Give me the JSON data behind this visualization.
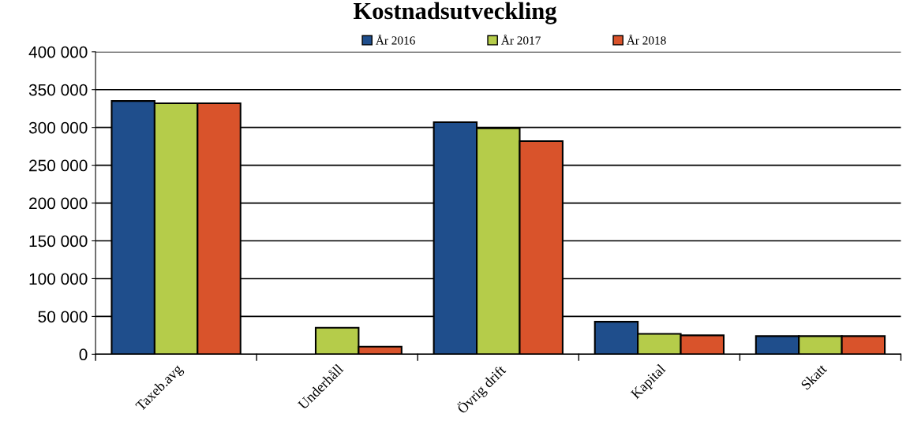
{
  "chart_data": {
    "type": "bar",
    "title": "Kostnadsutveckling",
    "categories": [
      "Taxeb.avg",
      "Underhåll",
      "Övrig drift",
      "Kapital",
      "Skatt"
    ],
    "series": [
      {
        "name": "År 2016",
        "color": "#1f4e8c",
        "values": [
          335000,
          0,
          307000,
          43000,
          24000
        ]
      },
      {
        "name": "År 2017",
        "color": "#b5cc4a",
        "values": [
          332000,
          35000,
          299000,
          27000,
          24000
        ]
      },
      {
        "name": "År 2018",
        "color": "#d9532b",
        "values": [
          332000,
          10000,
          282000,
          25000,
          24000
        ]
      }
    ],
    "ylim": [
      0,
      400000
    ],
    "yticks": [
      {
        "value": 0,
        "label": "0"
      },
      {
        "value": 50000,
        "label": "50 000"
      },
      {
        "value": 100000,
        "label": "100 000"
      },
      {
        "value": 150000,
        "label": "150 000"
      },
      {
        "value": 200000,
        "label": "200 000"
      },
      {
        "value": 250000,
        "label": "250 000"
      },
      {
        "value": 300000,
        "label": "300 000"
      },
      {
        "value": 350000,
        "label": "350 000"
      },
      {
        "value": 400000,
        "label": "400 000"
      }
    ],
    "grid": "y",
    "legend": "top"
  }
}
